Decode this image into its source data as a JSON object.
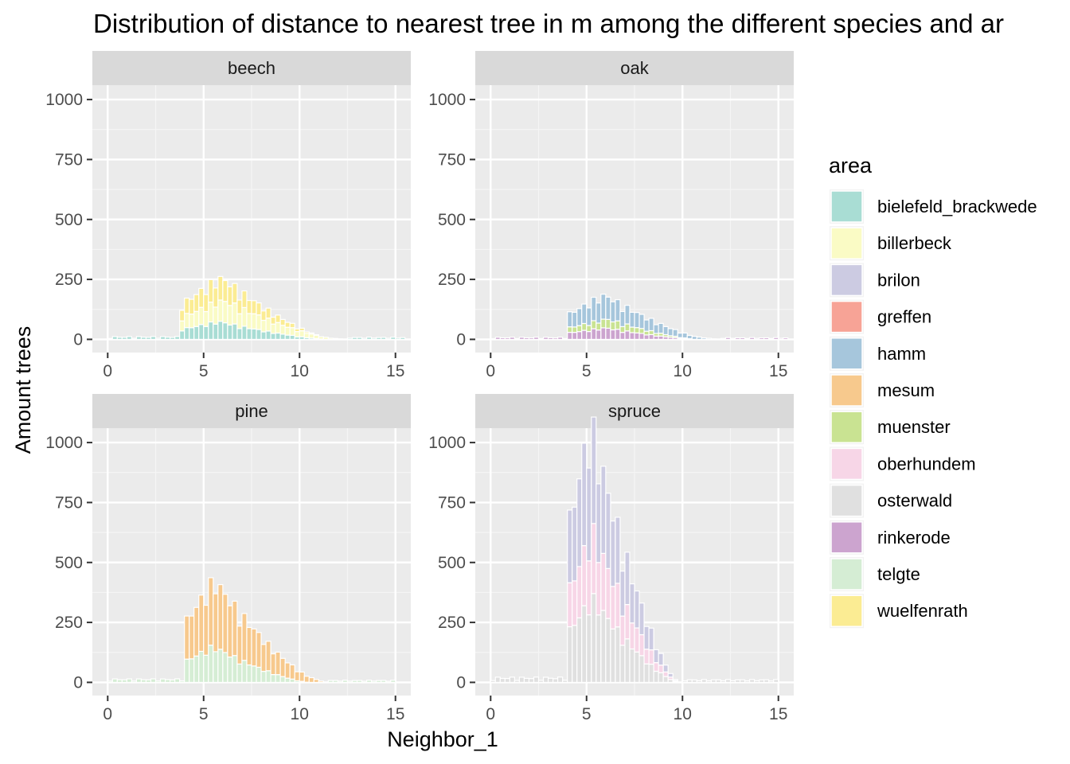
{
  "chart_data": {
    "type": "bar",
    "chart_kind": "stacked histogram, faceted",
    "title": "Distribution of distance to nearest tree in m among the different species and ar",
    "xlabel": "Neighbor_1",
    "ylabel": "Amount trees",
    "xlim": [
      -0.8,
      15.8
    ],
    "ylim": [
      -55,
      1060
    ],
    "x_ticks": [
      0,
      5,
      10,
      15
    ],
    "y_ticks": [
      0,
      250,
      500,
      750,
      1000
    ],
    "bin_width": 0.25,
    "grid": true,
    "legend": {
      "title": "area",
      "position": "right",
      "entries": [
        {
          "label": "bielefeld_brackwede",
          "color": "#a9ddd4"
        },
        {
          "label": "billerbeck",
          "color": "#fafbc5"
        },
        {
          "label": "brilon",
          "color": "#cccbe2"
        },
        {
          "label": "greffen",
          "color": "#f7a396"
        },
        {
          "label": "hamm",
          "color": "#a6c6dc"
        },
        {
          "label": "mesum",
          "color": "#f7c98d"
        },
        {
          "label": "muenster",
          "color": "#c9e392"
        },
        {
          "label": "oberhundem",
          "color": "#f7d6e7"
        },
        {
          "label": "osterwald",
          "color": "#e0e0e0"
        },
        {
          "label": "rinkerode",
          "color": "#cca4cf"
        },
        {
          "label": "telgte",
          "color": "#d5edd4"
        },
        {
          "label": "wuelfenrath",
          "color": "#fbec93"
        }
      ]
    },
    "facets": [
      {
        "label": "beech",
        "series": [
          {
            "name": "bielefeld_brackwede",
            "segments": [
              {
                "from": 3.8,
                "to": 11.5,
                "peak_x": 5.8,
                "peak_y": 70
              }
            ]
          },
          {
            "name": "billerbeck",
            "segments": [
              {
                "from": 3.8,
                "to": 12.5,
                "peak_x": 6.2,
                "peak_y": 85
              }
            ]
          },
          {
            "name": "wuelfenrath",
            "segments": [
              {
                "from": 3.8,
                "to": 11.2,
                "peak_x": 5.8,
                "peak_y": 90
              }
            ]
          }
        ],
        "tail_left": {
          "from": 0,
          "to": 3.8,
          "value": 8
        },
        "tail_right": {
          "from": 12.5,
          "to": 15.5,
          "value": 6
        }
      },
      {
        "label": "oak",
        "series": [
          {
            "name": "rinkerode",
            "segments": [
              {
                "from": 4,
                "to": 10.8,
                "peak_x": 6,
                "peak_y": 45
              }
            ]
          },
          {
            "name": "muenster",
            "segments": [
              {
                "from": 4,
                "to": 10.8,
                "peak_x": 6.2,
                "peak_y": 35
              }
            ]
          },
          {
            "name": "hamm",
            "segments": [
              {
                "from": 4,
                "to": 12,
                "peak_x": 5.8,
                "peak_y": 95
              }
            ]
          }
        ],
        "tail_left": {
          "from": 0,
          "to": 4,
          "value": 6
        },
        "tail_right": {
          "from": 12,
          "to": 15.5,
          "value": 5
        }
      },
      {
        "label": "pine",
        "series": [
          {
            "name": "telgte",
            "segments": [
              {
                "from": 3.9,
                "to": 10.5,
                "peak_x": 5.5,
                "peak_y": 140
              }
            ]
          },
          {
            "name": "mesum",
            "segments": [
              {
                "from": 3.9,
                "to": 11.5,
                "peak_x": 5.6,
                "peak_y": 260
              }
            ]
          }
        ],
        "tail_left": {
          "from": 0,
          "to": 3.9,
          "value": 10
        },
        "tail_right": {
          "from": 11.5,
          "to": 15,
          "value": 6
        }
      },
      {
        "label": "spruce",
        "series": [
          {
            "name": "osterwald",
            "segments": [
              {
                "from": 3.9,
                "to": 9.8,
                "peak_x": 5.3,
                "peak_y": 330
              }
            ]
          },
          {
            "name": "oberhundem",
            "segments": [
              {
                "from": 3.9,
                "to": 9.8,
                "peak_x": 5.3,
                "peak_y": 260
              }
            ]
          },
          {
            "name": "brilon",
            "segments": [
              {
                "from": 3.9,
                "to": 9.8,
                "peak_x": 5.1,
                "peak_y": 420
              }
            ]
          }
        ],
        "tail_left": {
          "from": 0,
          "to": 3.9,
          "value": 15
        },
        "tail_right": {
          "from": 9.8,
          "to": 15,
          "value": 8
        }
      }
    ]
  }
}
